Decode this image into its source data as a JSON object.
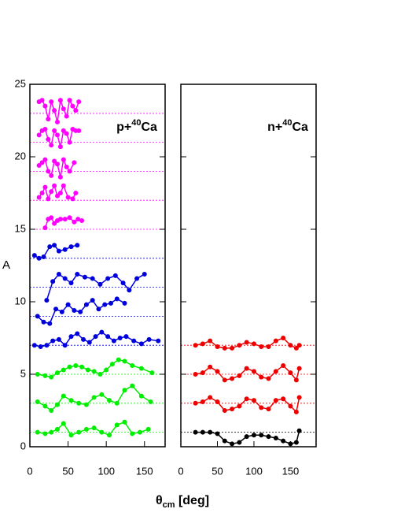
{
  "chart_data": [
    {
      "type": "scatter",
      "ylabel": "A",
      "xlabel": {
        "symbol": "θ",
        "sub": "cm",
        "rest": " [deg]"
      },
      "annotation": {
        "prefix": "p+",
        "sup": "40",
        "suffix": "Ca"
      },
      "xlim": [
        0,
        177
      ],
      "ylim": [
        0,
        25
      ],
      "xticks": [
        0,
        50,
        100,
        150
      ],
      "yticks": [
        0,
        5,
        10,
        15,
        20,
        25
      ],
      "show_ytick_labels": true,
      "series": [
        {
          "color": "#ff00ff",
          "baseline": 23,
          "x": [
            12,
            16,
            20,
            24,
            28,
            32,
            36,
            40,
            44,
            48,
            52,
            56,
            60,
            64
          ],
          "values": [
            23.8,
            23.9,
            23.5,
            22.6,
            23.8,
            23.2,
            22.4,
            23.9,
            23.3,
            22.8,
            23.9,
            23.5,
            23.2,
            23.8
          ]
        },
        {
          "color": "#ff00ff",
          "baseline": 21,
          "x": [
            12,
            16,
            20,
            24,
            28,
            32,
            36,
            40,
            44,
            48,
            52,
            56,
            60,
            64
          ],
          "values": [
            21.5,
            21.8,
            21.9,
            21.2,
            20.8,
            21.8,
            21.5,
            20.7,
            21.8,
            21.6,
            21.0,
            21.9,
            21.8,
            21.8
          ]
        },
        {
          "color": "#ff00ff",
          "baseline": 19,
          "x": [
            12,
            16,
            20,
            24,
            28,
            32,
            36,
            40,
            44,
            48,
            52,
            58
          ],
          "values": [
            19.4,
            19.6,
            19.8,
            19.0,
            18.7,
            19.7,
            19.5,
            18.6,
            19.8,
            19.3,
            19.0,
            19.6
          ]
        },
        {
          "color": "#ff00ff",
          "baseline": 17,
          "x": [
            12,
            16,
            20,
            24,
            28,
            32,
            36,
            40,
            44,
            50,
            56,
            60
          ],
          "values": [
            17.2,
            17.5,
            17.9,
            17.1,
            17.6,
            18.0,
            17.3,
            17.5,
            18.0,
            17.2,
            17.1,
            17.5
          ]
        },
        {
          "color": "#ff00ff",
          "baseline": 15,
          "x": [
            20,
            24,
            28,
            32,
            36,
            40,
            46,
            52,
            58,
            63,
            68
          ],
          "values": [
            15.1,
            15.7,
            15.8,
            15.4,
            15.6,
            15.7,
            15.7,
            15.8,
            15.5,
            15.7,
            15.6
          ]
        },
        {
          "color": "#0000dd",
          "baseline": 13,
          "x": [
            6,
            12,
            18,
            26,
            32,
            38,
            46,
            54,
            62
          ],
          "values": [
            13.2,
            13.0,
            13.1,
            13.8,
            13.9,
            13.5,
            13.6,
            13.8,
            13.9
          ]
        },
        {
          "color": "#0000dd",
          "baseline": 11,
          "x": [
            22,
            30,
            38,
            46,
            54,
            62,
            72,
            82,
            92,
            102,
            112,
            122,
            130,
            140,
            150
          ],
          "values": [
            10.1,
            11.4,
            11.9,
            11.6,
            11.3,
            11.9,
            11.7,
            11.6,
            11.2,
            11.6,
            11.8,
            11.3,
            10.8,
            11.6,
            11.9
          ]
        },
        {
          "color": "#0000dd",
          "baseline": 9,
          "x": [
            10,
            18,
            26,
            34,
            42,
            50,
            58,
            66,
            74,
            82,
            90,
            98,
            106,
            114,
            124
          ],
          "values": [
            9.0,
            8.6,
            8.5,
            9.5,
            9.3,
            9.8,
            9.4,
            9.3,
            9.8,
            10.1,
            9.5,
            9.8,
            9.9,
            10.2,
            9.9
          ]
        },
        {
          "color": "#0000dd",
          "baseline": 7,
          "x": [
            6,
            14,
            22,
            30,
            38,
            46,
            54,
            62,
            70,
            78,
            86,
            94,
            102,
            110,
            118,
            126,
            136,
            146,
            156,
            168
          ],
          "values": [
            7.0,
            6.9,
            7.0,
            7.3,
            7.4,
            7.0,
            7.6,
            7.8,
            7.4,
            7.2,
            7.6,
            7.9,
            7.6,
            7.3,
            7.5,
            7.6,
            7.3,
            7.1,
            7.4,
            7.3
          ]
        },
        {
          "color": "#00ee00",
          "baseline": 5,
          "x": [
            10,
            20,
            28,
            36,
            44,
            52,
            60,
            68,
            76,
            84,
            92,
            100,
            108,
            116,
            124,
            134,
            146,
            160
          ],
          "values": [
            5.0,
            4.9,
            4.8,
            5.1,
            5.3,
            5.5,
            5.6,
            5.5,
            5.3,
            5.2,
            5.0,
            5.3,
            5.7,
            6.0,
            5.9,
            5.6,
            5.4,
            5.1
          ]
        },
        {
          "color": "#00ee00",
          "baseline": 3,
          "x": [
            10,
            20,
            28,
            36,
            44,
            54,
            64,
            74,
            84,
            94,
            104,
            114,
            124,
            134,
            146,
            158
          ],
          "values": [
            3.1,
            2.8,
            2.5,
            2.9,
            3.5,
            3.2,
            3.0,
            2.9,
            3.4,
            3.6,
            3.2,
            3.0,
            3.9,
            4.2,
            3.5,
            3.1
          ]
        },
        {
          "color": "#00ee00",
          "baseline": 1,
          "x": [
            10,
            20,
            28,
            36,
            44,
            54,
            64,
            74,
            84,
            94,
            104,
            114,
            124,
            134,
            144,
            155
          ],
          "values": [
            1.0,
            0.9,
            1.0,
            1.2,
            1.6,
            0.8,
            1.0,
            1.2,
            1.3,
            1.0,
            0.8,
            1.5,
            1.7,
            0.9,
            1.0,
            1.2
          ]
        }
      ]
    },
    {
      "type": "scatter",
      "annotation": {
        "prefix": "n+",
        "sup": "40",
        "suffix": "Ca"
      },
      "xlim": [
        0,
        185
      ],
      "ylim": [
        0,
        25
      ],
      "xticks": [
        0,
        50,
        100,
        150
      ],
      "yticks": [
        0,
        5,
        10,
        15,
        20,
        25
      ],
      "show_ytick_labels": false,
      "series": [
        {
          "color": "#ee0000",
          "baseline": 7,
          "x": [
            20,
            30,
            40,
            50,
            60,
            70,
            80,
            90,
            100,
            110,
            120,
            130,
            140,
            150,
            158,
            162
          ],
          "values": [
            7.0,
            7.1,
            7.3,
            6.9,
            6.8,
            6.8,
            7.0,
            7.2,
            7.1,
            6.9,
            6.9,
            7.3,
            7.5,
            7.0,
            6.8,
            7.0
          ]
        },
        {
          "color": "#ee0000",
          "baseline": 5,
          "x": [
            20,
            30,
            40,
            50,
            60,
            70,
            80,
            90,
            100,
            110,
            120,
            130,
            140,
            150,
            158,
            162
          ],
          "values": [
            5.0,
            5.1,
            5.5,
            5.2,
            4.6,
            4.7,
            4.9,
            5.4,
            5.2,
            4.8,
            4.7,
            5.2,
            5.6,
            5.1,
            4.6,
            5.4
          ]
        },
        {
          "color": "#ee0000",
          "baseline": 3,
          "x": [
            20,
            30,
            40,
            50,
            60,
            70,
            80,
            90,
            100,
            110,
            120,
            130,
            140,
            150,
            158,
            162
          ],
          "values": [
            3.0,
            3.1,
            3.4,
            3.1,
            2.5,
            2.6,
            2.8,
            3.3,
            3.2,
            2.7,
            2.6,
            3.2,
            3.3,
            2.8,
            2.4,
            3.4
          ]
        },
        {
          "color": "#000000",
          "baseline": 1,
          "x": [
            20,
            30,
            40,
            50,
            60,
            70,
            80,
            90,
            100,
            110,
            120,
            130,
            140,
            150,
            158,
            162
          ],
          "values": [
            1.0,
            1.0,
            1.0,
            0.9,
            0.4,
            0.2,
            0.3,
            0.7,
            0.8,
            0.8,
            0.7,
            0.6,
            0.4,
            0.2,
            0.3,
            1.1
          ]
        }
      ]
    }
  ]
}
